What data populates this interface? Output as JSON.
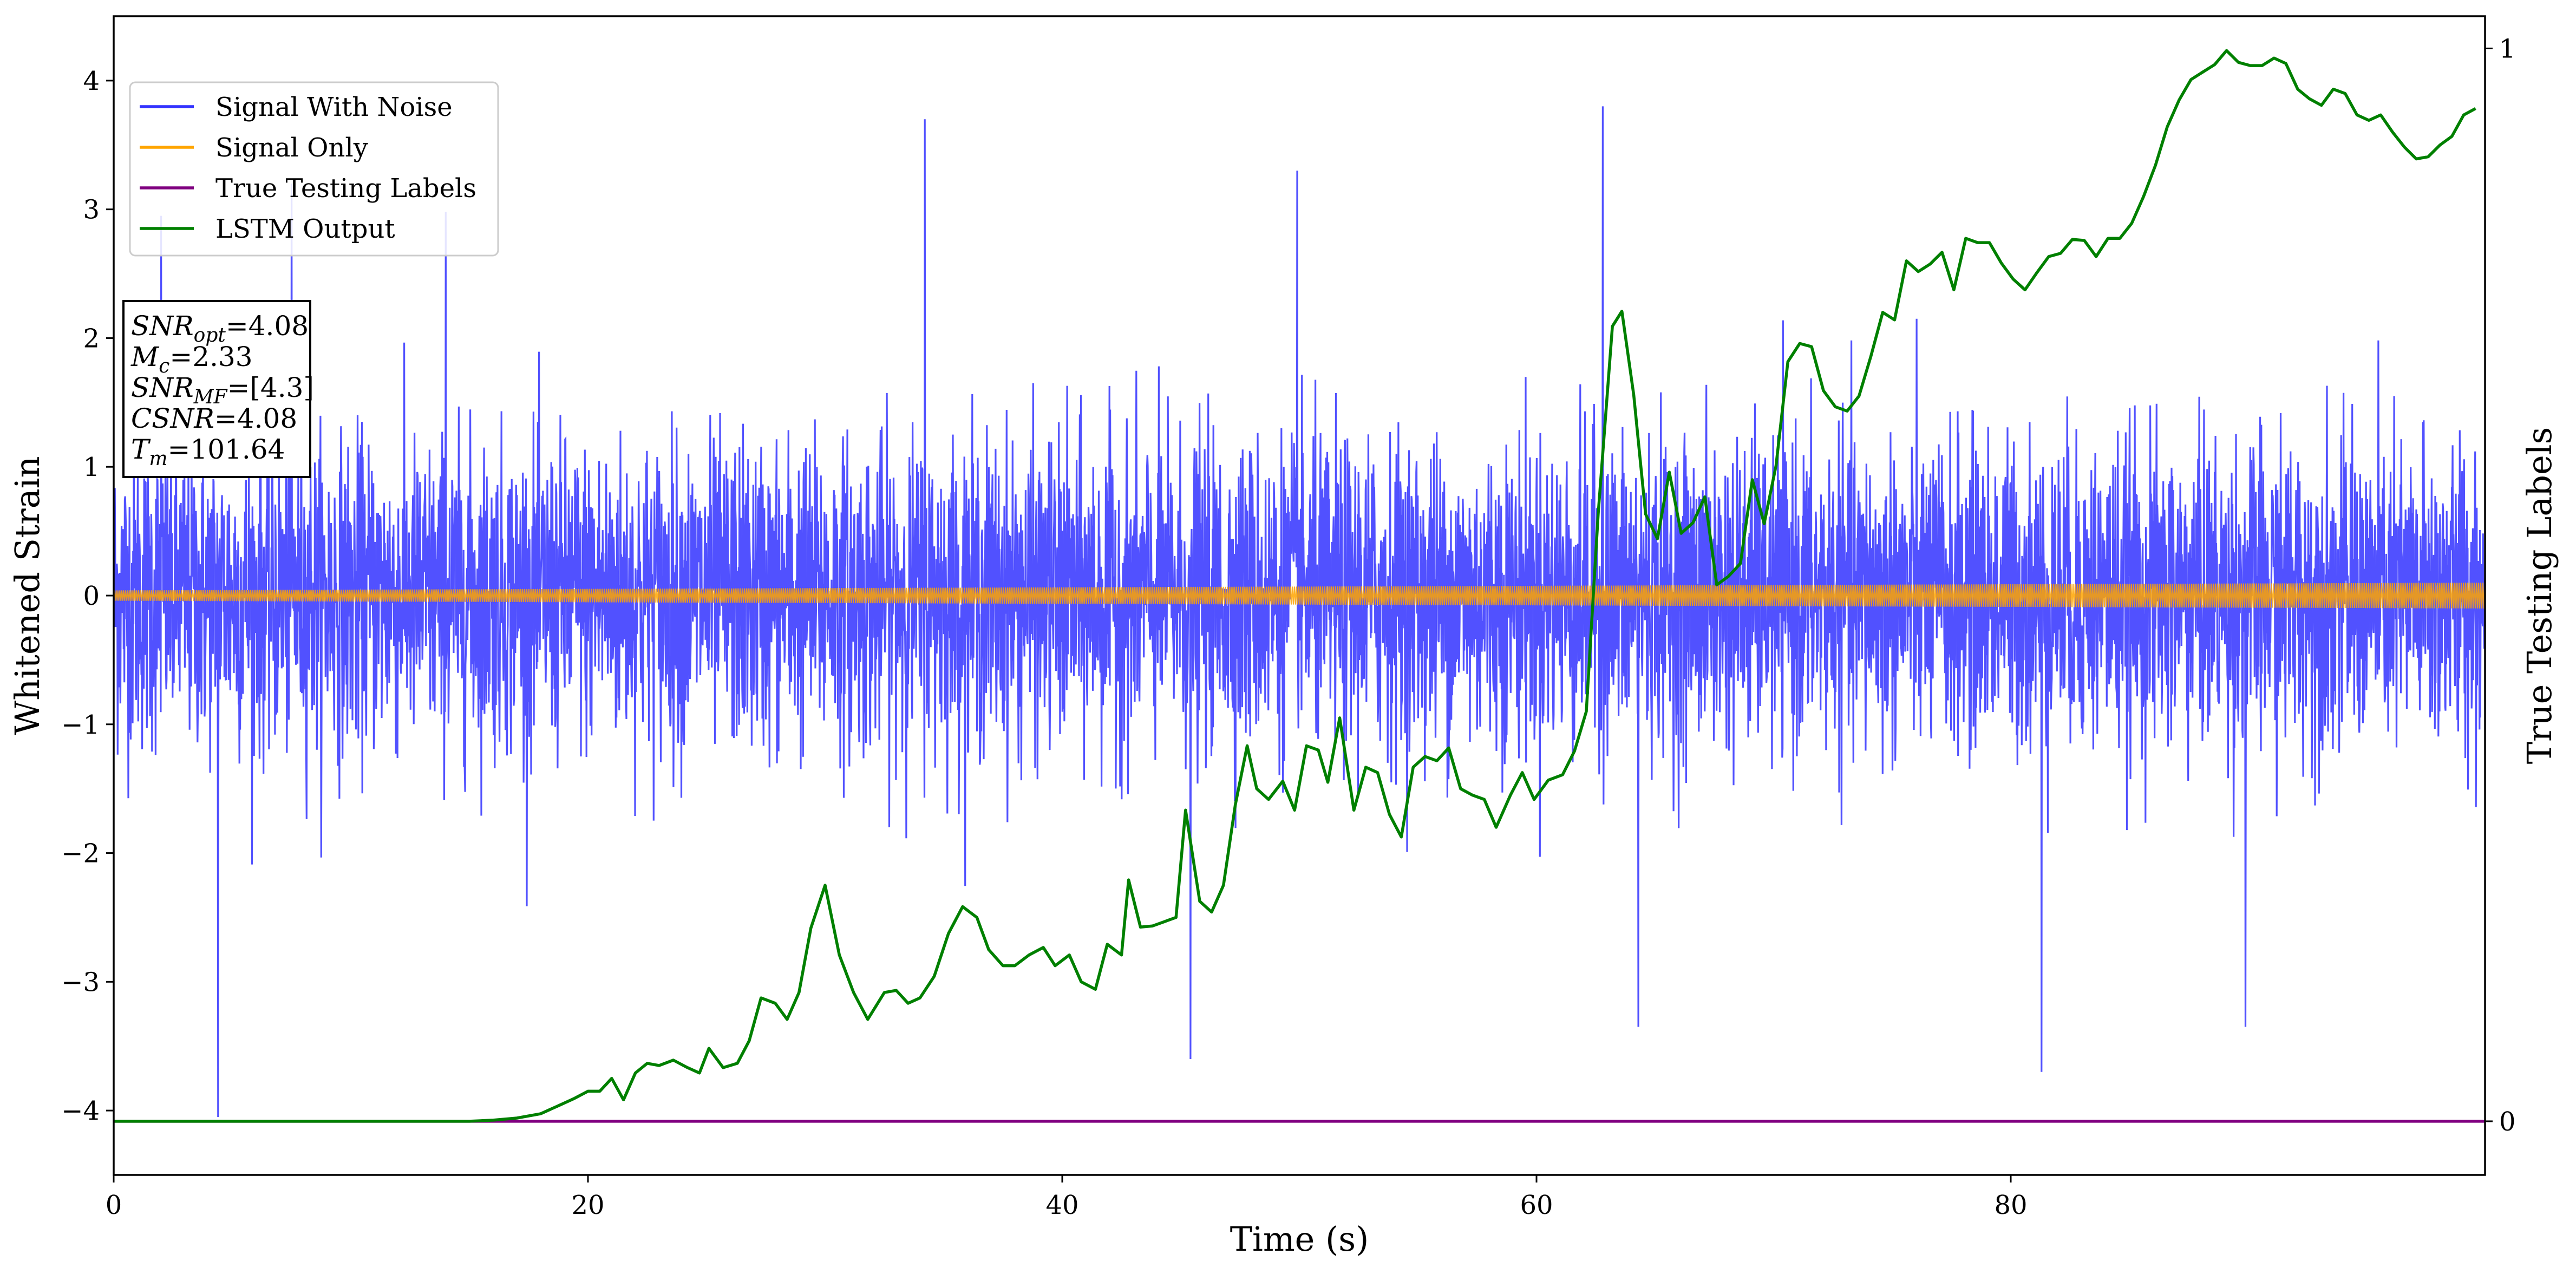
{
  "chart_data": {
    "type": "line",
    "xlabel": "Time (s)",
    "ylabel": "Whitened Strain",
    "y2label": "True Testing Labels",
    "xlim": [
      0,
      100
    ],
    "ylim": [
      -4.5,
      4.5
    ],
    "y2lim": [
      -0.05,
      1.03
    ],
    "x_ticks": [
      0,
      20,
      40,
      60,
      80
    ],
    "y_ticks": [
      -4,
      -3,
      -2,
      -1,
      0,
      1,
      2,
      3,
      4
    ],
    "y2_ticks": [
      0,
      1
    ],
    "legend_position": "upper-left",
    "legend": [
      {
        "label": "Signal With Noise",
        "color": "#3333ff"
      },
      {
        "label": "Signal Only",
        "color": "#ffa500"
      },
      {
        "label": "True Testing Labels",
        "color": "#800080"
      },
      {
        "label": "LSTM Output",
        "color": "#008000"
      }
    ],
    "annotation": [
      {
        "sym": "SNR",
        "sub": "opt",
        "val": "=4.08"
      },
      {
        "sym": "M",
        "sub": "c",
        "val": "=2.33"
      },
      {
        "sym": "SNR",
        "sub": "MF",
        "val": "=[4.3]"
      },
      {
        "sym": "CSNR",
        "sub": "",
        "val": "=4.08"
      },
      {
        "sym": "T",
        "sub": "m",
        "val": "=101.64"
      }
    ],
    "series": [
      {
        "name": "Signal With Noise",
        "axis": "left",
        "color": "#3333ff",
        "style": "noise",
        "envelope_std": 0.6,
        "extremes": [
          [
            4.4,
            -4.05
          ],
          [
            34.2,
            3.7
          ],
          [
            45.4,
            -3.6
          ],
          [
            62.8,
            3.8
          ],
          [
            81.3,
            -3.7
          ],
          [
            64.3,
            -3.35
          ],
          [
            49.9,
            3.3
          ],
          [
            89.9,
            -3.35
          ],
          [
            7.5,
            3.2
          ],
          [
            14.0,
            2.98
          ],
          [
            2.0,
            2.95
          ]
        ]
      },
      {
        "name": "Signal Only",
        "axis": "left",
        "color": "#ffa500",
        "style": "band",
        "amplitude_start": 0.04,
        "amplitude_end": 0.1
      },
      {
        "name": "True Testing Labels",
        "axis": "right",
        "color": "#800080",
        "x": [
          0,
          100
        ],
        "y": [
          0,
          0
        ]
      },
      {
        "name": "LSTM Output",
        "axis": "right",
        "color": "#008000",
        "x": [
          0,
          15,
          16,
          17,
          18,
          18.7,
          19.4,
          20,
          20.5,
          21,
          21.5,
          22,
          22.5,
          23,
          23.6,
          24.2,
          24.7,
          25.1,
          25.7,
          26.3,
          26.8,
          27.3,
          27.9,
          28.4,
          28.9,
          29.4,
          30,
          30.6,
          31.2,
          31.8,
          32.5,
          33,
          33.5,
          34,
          34.6,
          35.2,
          35.8,
          36.4,
          36.9,
          37.5,
          38,
          38.6,
          39.2,
          39.7,
          40.3,
          40.8,
          41.4,
          41.9,
          42.5,
          42.8,
          43.3,
          43.8,
          44.3,
          44.8,
          45.2,
          45.8,
          46.3,
          46.8,
          47.3,
          47.8,
          48.2,
          48.7,
          49.3,
          49.8,
          50.3,
          50.8,
          51.2,
          51.7,
          52.3,
          52.8,
          53.3,
          53.8,
          54.3,
          54.8,
          55.3,
          55.8,
          56.3,
          56.8,
          57.3,
          57.8,
          58.3,
          58.9,
          59.4,
          59.9,
          60.5,
          61.1,
          61.6,
          62.1,
          62.6,
          63.2,
          63.6,
          64.1,
          64.6,
          65.1,
          65.6,
          66.1,
          66.6,
          67.1,
          67.6,
          68.1,
          68.6,
          69.1,
          69.6,
          70.1,
          70.6,
          71.1,
          71.6,
          72.1,
          72.6,
          73.1,
          73.6,
          74.1,
          74.6,
          75.1,
          75.6,
          76.1,
          76.6,
          77.1,
          77.6,
          78.1,
          78.6,
          79.1,
          79.6,
          80.1,
          80.6,
          81.1,
          81.6,
          82.1,
          82.6,
          83.1,
          83.6,
          84.1,
          84.6,
          85.1,
          85.6,
          86.1,
          86.6,
          87.1,
          87.6,
          88.1,
          88.6,
          89.1,
          89.6,
          90.1,
          90.6,
          91.1,
          91.6,
          92.1,
          92.6,
          93.1,
          93.6,
          94.1,
          94.6,
          95.1,
          95.6,
          96.1,
          96.6,
          97.1,
          97.6,
          98.1,
          98.6,
          99.1,
          99.6
        ],
        "y": [
          0,
          0,
          0.001,
          0.003,
          0.007,
          0.014,
          0.021,
          0.028,
          0.028,
          0.04,
          0.02,
          0.045,
          0.054,
          0.052,
          0.057,
          0.05,
          0.045,
          0.068,
          0.05,
          0.054,
          0.075,
          0.115,
          0.11,
          0.095,
          0.12,
          0.18,
          0.22,
          0.155,
          0.12,
          0.095,
          0.12,
          0.122,
          0.11,
          0.115,
          0.135,
          0.175,
          0.2,
          0.19,
          0.16,
          0.145,
          0.145,
          0.155,
          0.162,
          0.145,
          0.155,
          0.13,
          0.123,
          0.165,
          0.155,
          0.225,
          0.181,
          0.182,
          0.186,
          0.19,
          0.29,
          0.205,
          0.195,
          0.22,
          0.295,
          0.35,
          0.31,
          0.3,
          0.317,
          0.29,
          0.35,
          0.346,
          0.316,
          0.376,
          0.29,
          0.33,
          0.325,
          0.286,
          0.265,
          0.33,
          0.34,
          0.336,
          0.348,
          0.31,
          0.304,
          0.3,
          0.274,
          0.304,
          0.325,
          0.3,
          0.318,
          0.323,
          0.345,
          0.382,
          0.566,
          0.741,
          0.755,
          0.677,
          0.566,
          0.543,
          0.605,
          0.548,
          0.558,
          0.582,
          0.5,
          0.508,
          0.52,
          0.598,
          0.557,
          0.611,
          0.708,
          0.725,
          0.722,
          0.681,
          0.666,
          0.662,
          0.676,
          0.713,
          0.754,
          0.747,
          0.802,
          0.792,
          0.799,
          0.81,
          0.775,
          0.823,
          0.819,
          0.819,
          0.8,
          0.785,
          0.775,
          0.791,
          0.806,
          0.809,
          0.822,
          0.821,
          0.806,
          0.823,
          0.823,
          0.837,
          0.862,
          0.891,
          0.927,
          0.952,
          0.971,
          0.978,
          0.985,
          0.998,
          0.987,
          0.984,
          0.984,
          0.991,
          0.986,
          0.962,
          0.953,
          0.947,
          0.962,
          0.958,
          0.938,
          0.933,
          0.938,
          0.922,
          0.908,
          0.897,
          0.899,
          0.91,
          0.918,
          0.938,
          0.944
        ]
      }
    ]
  }
}
